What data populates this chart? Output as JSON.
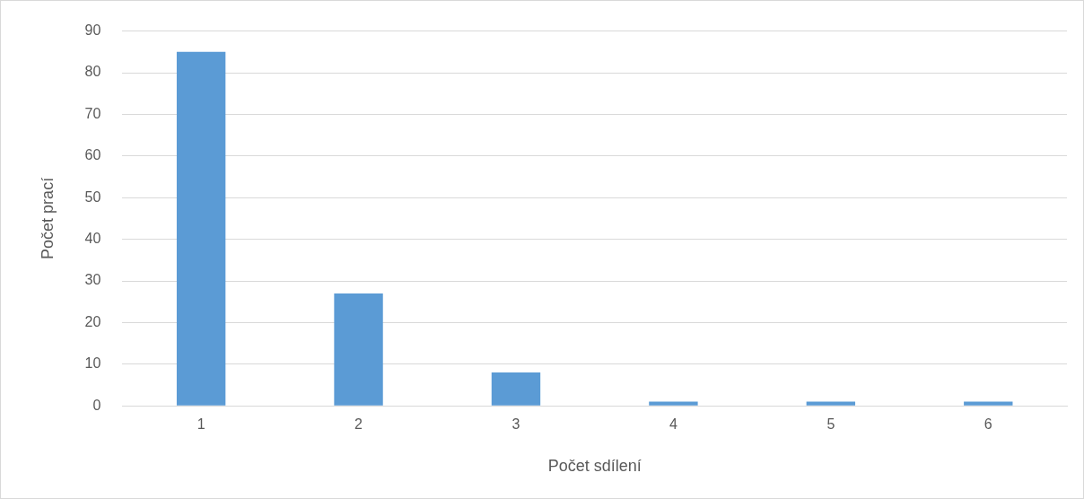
{
  "chart_data": {
    "type": "bar",
    "xlabel": "Počet sdílení",
    "ylabel": "Počet prací",
    "categories": [
      "1",
      "2",
      "3",
      "4",
      "5",
      "6"
    ],
    "values": [
      85,
      27,
      8,
      1,
      1,
      1
    ],
    "color": "#5b9bd5",
    "ylim": [
      0,
      90
    ],
    "yticks": [
      0,
      10,
      20,
      30,
      40,
      50,
      60,
      70,
      80,
      90
    ],
    "grid": "y",
    "legend": false
  }
}
